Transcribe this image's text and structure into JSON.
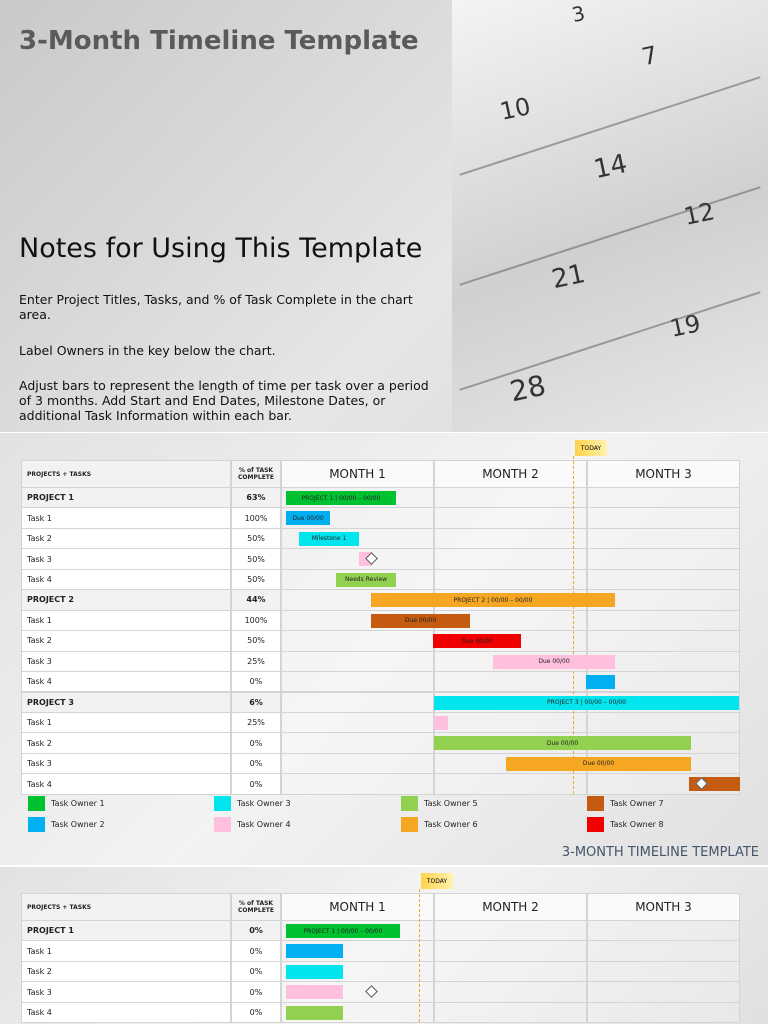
{
  "slide1": {
    "title": "3-Month Timeline Template",
    "notes_title": "Notes for Using This Template",
    "notes": [
      "Enter Project Titles, Tasks, and % of Task Complete in the chart area.",
      "Label Owners in the key below the chart.",
      "Adjust bars to represent the length of time per task over a period of 3 months.  Add Start and End Dates, Milestone Dates, or additional Task Information within each bar."
    ],
    "calendar_numbers": [
      "3",
      "7",
      "10",
      "14",
      "21",
      "28",
      "12",
      "19"
    ]
  },
  "slide2": {
    "today": "TODAY",
    "header": {
      "tasks": "PROJECTS + TASKS",
      "percent": "% of TASK COMPLETE",
      "months": [
        "MONTH 1",
        "MONTH 2",
        "MONTH 3"
      ]
    },
    "rows": [
      [
        "PROJECT 1",
        "63%"
      ],
      [
        "Task 1",
        "100%"
      ],
      [
        "Task 2",
        "50%"
      ],
      [
        "Task 3",
        "50%"
      ],
      [
        "Task 4",
        "50%"
      ],
      [
        "PROJECT 2",
        "44%"
      ],
      [
        "Task 1",
        "100%"
      ],
      [
        "Task 2",
        "50%"
      ],
      [
        "Task 3",
        "25%"
      ],
      [
        "Task 4",
        "0%"
      ],
      [
        "PROJECT 3",
        "6%"
      ],
      [
        "Task 1",
        "25%"
      ],
      [
        "Task 2",
        "0%"
      ],
      [
        "Task 3",
        "0%"
      ],
      [
        "Task 4",
        "0%"
      ]
    ],
    "bar_labels": [
      "PROJECT 1  |  00/00 – 00/00",
      "Due 00/00",
      "Milestone 1",
      "Needs Review",
      "PROJECT 2  |  00/00 – 00/00",
      "Due 00/00",
      "Due 00/00",
      "Due 00/00",
      "PROJECT 3  |  00/00 – 00/00",
      "Due 00/00",
      "Due 00/00"
    ],
    "legend": [
      "Task Owner 1",
      "Task Owner 2",
      "Task Owner 3",
      "Task Owner 4",
      "Task Owner 5",
      "Task Owner 6",
      "Task Owner 7",
      "Task Owner 8"
    ],
    "footer": "3-MONTH TIMELINE TEMPLATE"
  },
  "slide3": {
    "today": "TODAY",
    "header": {
      "tasks": "PROJECTS + TASKS",
      "percent": "% of TASK COMPLETE",
      "months": [
        "MONTH 1",
        "MONTH 2",
        "MONTH 3"
      ]
    },
    "rows": [
      [
        "PROJECT 1",
        "0%"
      ],
      [
        "Task 1",
        "0%"
      ],
      [
        "Task 2",
        "0%"
      ],
      [
        "Task 3",
        "0%"
      ],
      [
        "Task 4",
        "0%"
      ]
    ],
    "bar_labels": [
      "PROJECT 1  |  00/00 – 00/00"
    ]
  }
}
